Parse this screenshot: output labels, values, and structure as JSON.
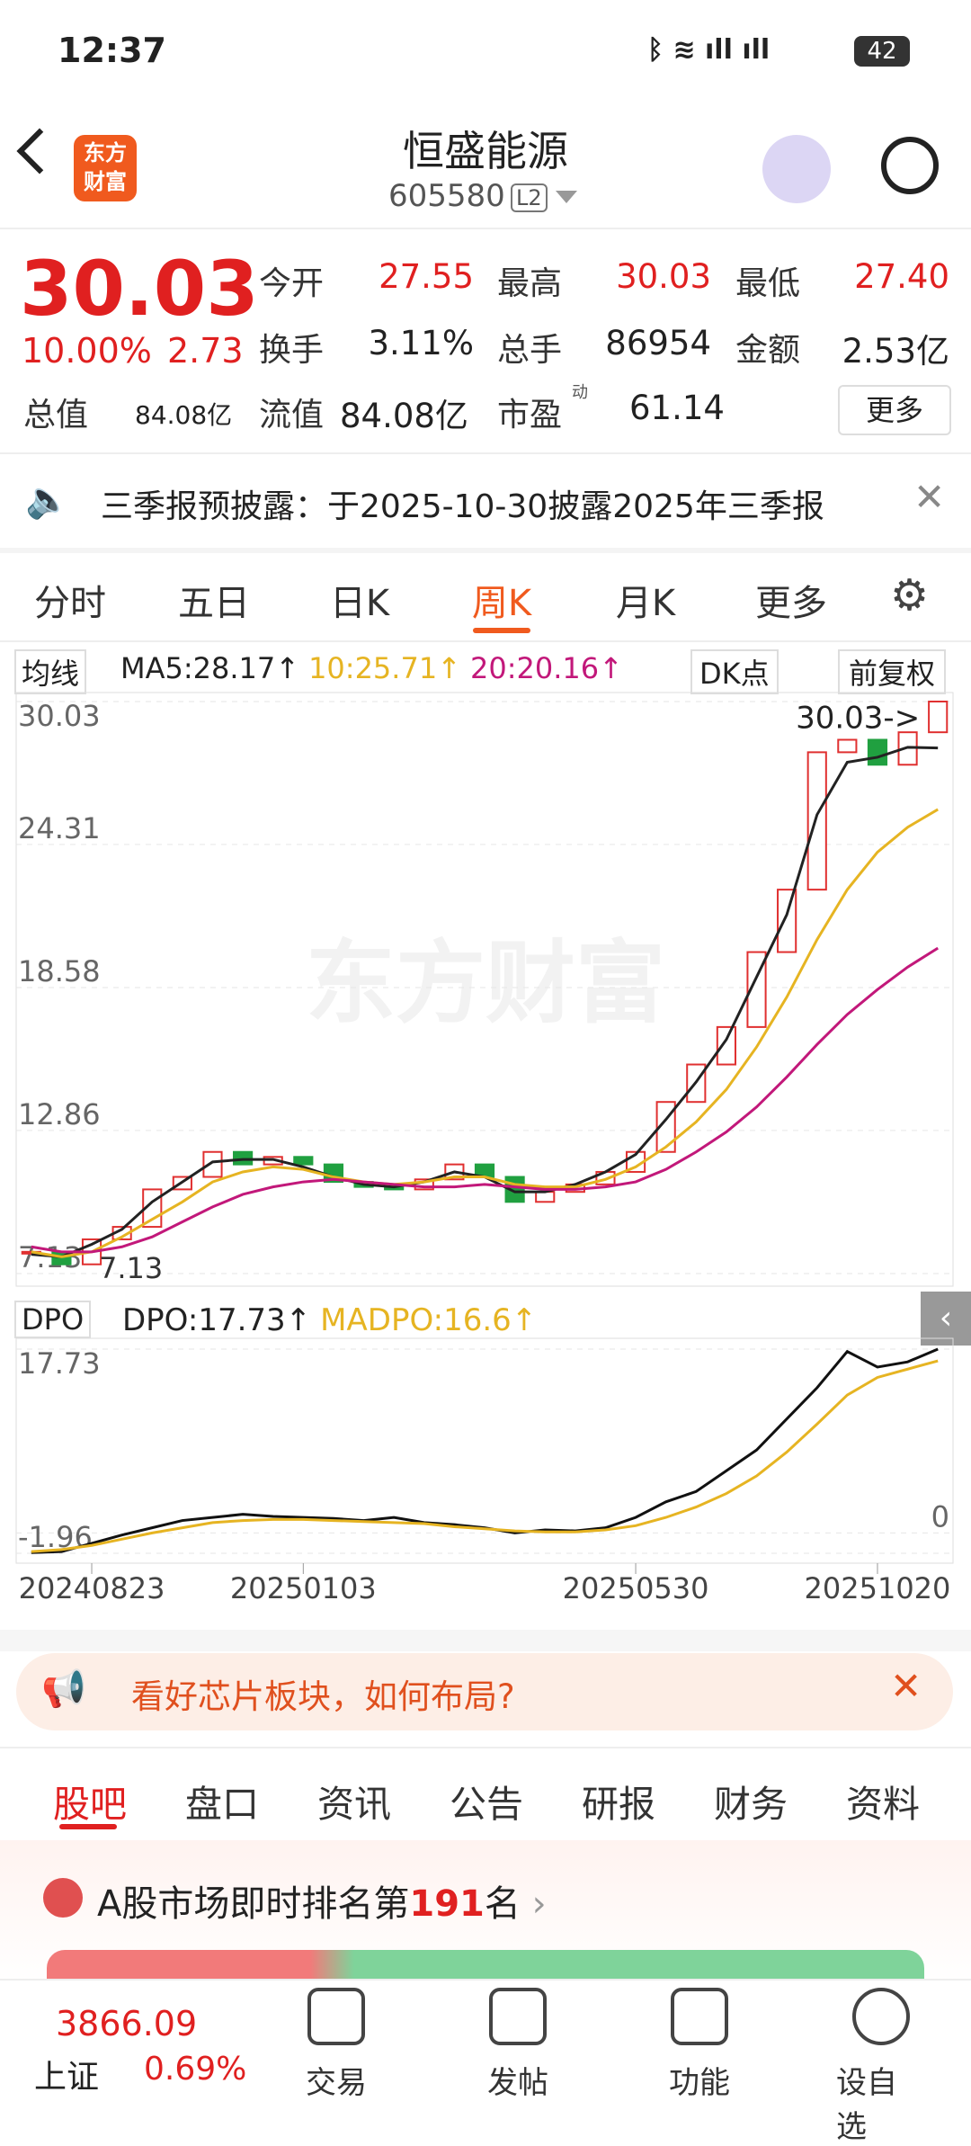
{
  "status": {
    "time": "12:37",
    "battery": "42"
  },
  "header": {
    "logo": [
      "东方",
      "财富"
    ],
    "title": "恒盛能源",
    "code": "605580",
    "level": "L2"
  },
  "quote": {
    "price": "30.03",
    "change_pct": "10.00%",
    "change": "2.73",
    "fields": [
      {
        "label": "今开",
        "value": "27.55"
      },
      {
        "label": "最高",
        "value": "30.03"
      },
      {
        "label": "最低",
        "value": "27.40"
      },
      {
        "label": "换手",
        "value": "3.11%"
      },
      {
        "label": "总手",
        "value": "86954"
      },
      {
        "label": "金额",
        "value": "2.53亿"
      }
    ],
    "market_cap": {
      "label": "总值",
      "value": "84.08亿"
    },
    "float_cap": {
      "label": "流值",
      "value": "84.08亿"
    },
    "pe": {
      "label": "市盈",
      "sup": "动",
      "value": "61.14"
    },
    "more": "更多"
  },
  "notice": "三季报预披露：于2025-10-30披露2025年三季报",
  "tabs": [
    "分时",
    "五日",
    "日K",
    "周K",
    "月K",
    "更多"
  ],
  "chart_controls": {
    "ma": "均线",
    "dk": "DK点",
    "adjust": "前复权",
    "indicator": "DPO",
    "watermark": "东方财富"
  },
  "chart_data": [
    {
      "type": "candlestick",
      "ylim": [
        7.13,
        30.03
      ],
      "yticks": [
        30.03,
        24.31,
        18.58,
        12.86,
        7.13
      ],
      "grid": true,
      "high_label": "30.03->",
      "low_label": "7.13",
      "categories": [
        null,
        null,
        "20240823",
        null,
        null,
        null,
        null,
        null,
        null,
        "20250103",
        null,
        null,
        null,
        null,
        null,
        null,
        null,
        null,
        null,
        null,
        "20250530",
        null,
        null,
        null,
        null,
        null,
        null,
        null,
        "20251020",
        null,
        null
      ],
      "close": [
        8.0,
        7.5,
        8.5,
        9.0,
        10.5,
        11.0,
        12.0,
        11.5,
        11.8,
        11.5,
        10.8,
        10.6,
        10.5,
        10.9,
        11.5,
        11.0,
        10.0,
        10.4,
        10.7,
        11.2,
        12.0,
        14.0,
        15.5,
        17.0,
        20.0,
        22.5,
        28.0,
        28.5,
        27.5,
        28.8,
        30.03
      ],
      "series": [
        {
          "name": "MA5",
          "color": "#222222",
          "values": [
            7.9,
            7.8,
            8.3,
            8.9,
            10.0,
            10.8,
            11.6,
            11.7,
            11.7,
            11.4,
            11.0,
            10.7,
            10.6,
            10.8,
            11.2,
            11.0,
            10.4,
            10.4,
            10.7,
            11.2,
            11.9,
            13.3,
            14.8,
            16.5,
            19.0,
            21.5,
            25.5,
            27.6,
            27.8,
            28.2,
            28.17
          ]
        },
        {
          "name": "10",
          "color": "#e6b422",
          "values": [
            8.0,
            7.8,
            8.0,
            8.6,
            9.3,
            10.0,
            10.8,
            11.2,
            11.4,
            11.3,
            11.0,
            10.8,
            10.7,
            10.8,
            11.0,
            11.0,
            10.7,
            10.6,
            10.6,
            10.9,
            11.4,
            12.2,
            13.2,
            14.5,
            16.2,
            18.2,
            20.5,
            22.5,
            24.0,
            25.0,
            25.71
          ]
        },
        {
          "name": "20",
          "color": "#c2187a",
          "values": [
            8.2,
            8.0,
            8.0,
            8.2,
            8.6,
            9.2,
            9.8,
            10.3,
            10.6,
            10.8,
            10.9,
            10.8,
            10.7,
            10.6,
            10.6,
            10.7,
            10.6,
            10.5,
            10.5,
            10.6,
            10.8,
            11.3,
            12.0,
            12.8,
            13.8,
            15.0,
            16.3,
            17.5,
            18.5,
            19.4,
            20.16
          ]
        }
      ]
    },
    {
      "type": "line",
      "ylim": [
        -1.96,
        17.73
      ],
      "yticks": [
        17.73,
        0,
        -1.96
      ],
      "series": [
        {
          "name": "DPO",
          "color": "#111111",
          "values": [
            -1.9,
            -1.8,
            -1.0,
            -0.2,
            0.5,
            1.2,
            1.5,
            1.8,
            1.6,
            1.5,
            1.4,
            1.2,
            1.5,
            1.0,
            0.8,
            0.5,
            0.0,
            0.3,
            0.2,
            0.5,
            1.5,
            3.0,
            4.0,
            6.0,
            8.0,
            11.0,
            14.0,
            17.5,
            16.0,
            16.5,
            17.73
          ]
        },
        {
          "name": "MADPO",
          "color": "#e6b422",
          "values": [
            -1.8,
            -1.6,
            -1.2,
            -0.6,
            0.0,
            0.5,
            1.0,
            1.2,
            1.3,
            1.3,
            1.2,
            1.1,
            1.0,
            0.9,
            0.6,
            0.4,
            0.2,
            0.1,
            0.1,
            0.3,
            0.7,
            1.5,
            2.5,
            3.8,
            5.5,
            7.8,
            10.5,
            13.3,
            15.0,
            15.8,
            16.6
          ]
        }
      ]
    }
  ],
  "banner": "看好芯片板块，如何布局?",
  "section_tabs": [
    "股吧",
    "盘口",
    "资讯",
    "公告",
    "研报",
    "财务",
    "资料"
  ],
  "ranking": {
    "prefix": "A股市场即时排名第",
    "rank": "191",
    "suffix": "名"
  },
  "bottom": {
    "index_value": "3866.09",
    "index_name": "上证",
    "index_pct": "0.69%",
    "nav": [
      "交易",
      "发帖",
      "功能",
      "设自选"
    ]
  }
}
